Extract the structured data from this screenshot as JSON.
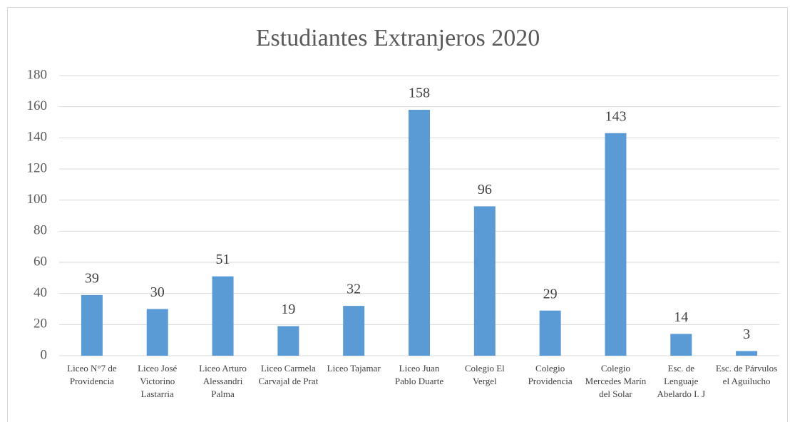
{
  "chart_data": {
    "type": "bar",
    "title": "Estudiantes Extranjeros 2020",
    "categories": [
      "Liceo N°7 de Providencia",
      "Liceo José Victorino Lastarria",
      "Liceo Arturo Alessandri Palma",
      "Liceo Carmela Carvajal de Prat",
      "Liceo Tajamar",
      "Liceo Juan Pablo Duarte",
      "Colegio El Vergel",
      "Colegio Providencia",
      "Colegio Mercedes Marín del Solar",
      "Esc. de Lenguaje Abelardo I. J",
      "Esc. de Párvulos el Aguilucho"
    ],
    "values": [
      39,
      30,
      51,
      19,
      32,
      158,
      96,
      29,
      143,
      14,
      3
    ],
    "color": "#5b9bd5",
    "ylim": [
      0,
      180
    ],
    "yticks": [
      0,
      20,
      40,
      60,
      80,
      100,
      120,
      140,
      160,
      180
    ],
    "grid": true
  }
}
